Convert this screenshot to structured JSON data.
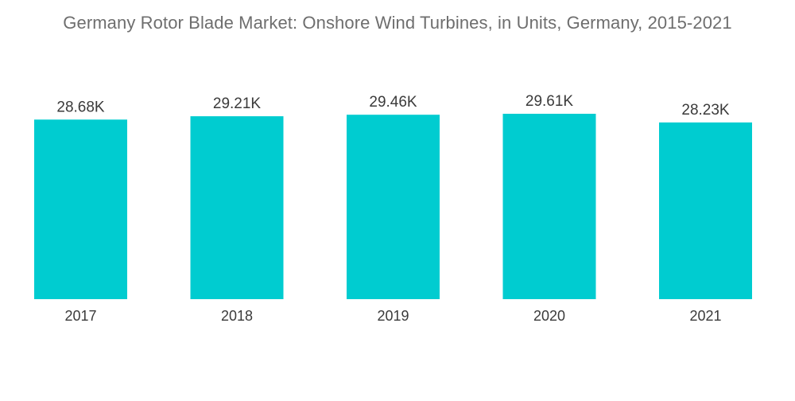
{
  "chart_data": {
    "type": "bar",
    "title": "Germany Rotor Blade Market: Onshore Wind Turbines, in Units, Germany, 2015-2021",
    "categories": [
      "2017",
      "2018",
      "2019",
      "2020",
      "2021"
    ],
    "values": [
      28.68,
      29.21,
      29.46,
      29.61,
      28.23
    ],
    "data_labels": [
      "28.68K",
      "29.21K",
      "29.46K",
      "29.61K",
      "28.23K"
    ],
    "xlabel": "",
    "ylabel": "",
    "ylim": [
      0,
      29.61
    ],
    "grid": false,
    "legend": "none",
    "bar_color": "#00ccd0"
  }
}
